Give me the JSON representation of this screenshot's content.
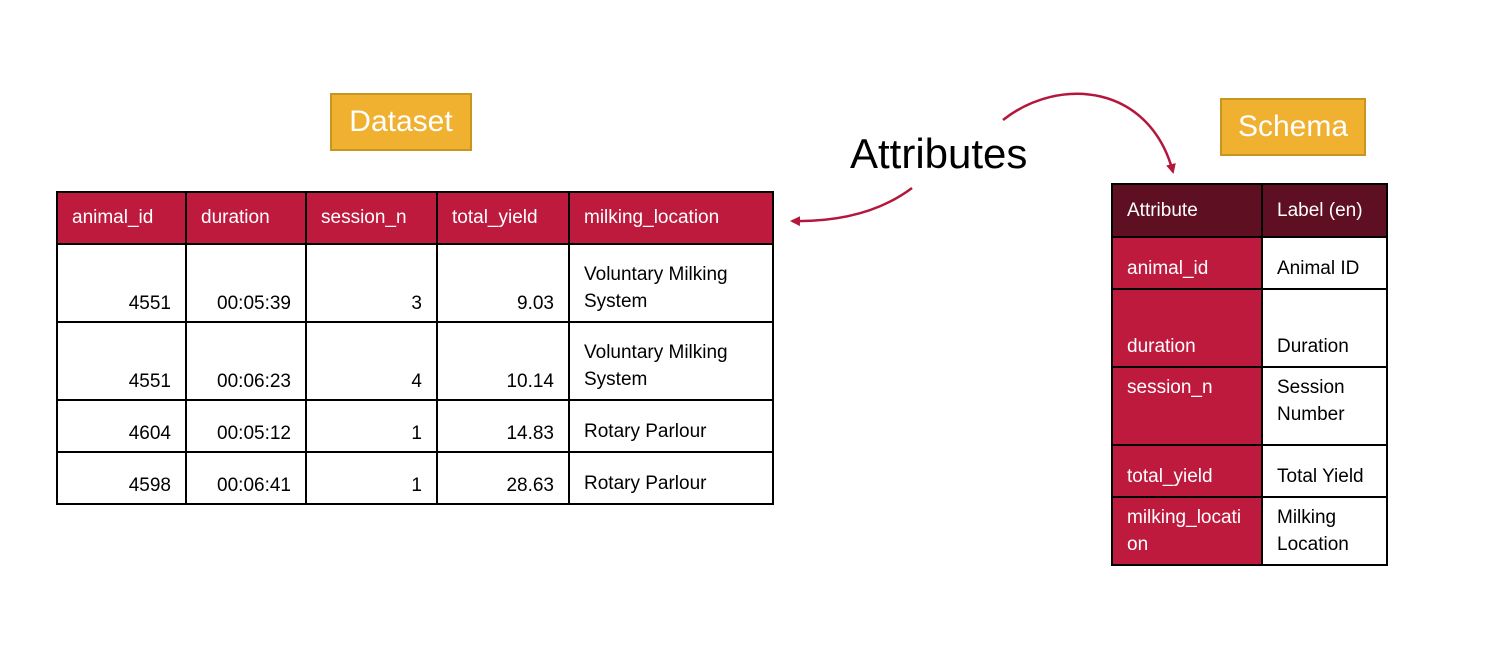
{
  "dataset_label": "Dataset",
  "schema_label": "Schema",
  "attributes_label": "Attributes",
  "colors": {
    "header_red": "#be1a3e",
    "header_dark": "#5e0f22",
    "tag_orange": "#f0b030",
    "arrow": "#b5173c"
  },
  "dataset": {
    "columns": [
      "animal_id",
      "duration",
      "session_n",
      "total_yield",
      "milking_location"
    ],
    "rows": [
      [
        "4551",
        "00:05:39",
        "3",
        "9.03",
        "Voluntary Milking System"
      ],
      [
        "4551",
        "00:06:23",
        "4",
        "10.14",
        "Voluntary Milking System"
      ],
      [
        "4604",
        "00:05:12",
        "1",
        "14.83",
        "Rotary Parlour"
      ],
      [
        "4598",
        "00:06:41",
        "1",
        "28.63",
        "Rotary Parlour"
      ]
    ]
  },
  "schema": {
    "columns": [
      "Attribute",
      "Label (en)"
    ],
    "rows": [
      [
        "animal_id",
        "Animal ID"
      ],
      [
        "duration",
        "Duration"
      ],
      [
        "session_n",
        "Session Number"
      ],
      [
        "total_yield",
        "Total Yield"
      ],
      [
        "milking_location",
        "Milking Location"
      ]
    ]
  }
}
